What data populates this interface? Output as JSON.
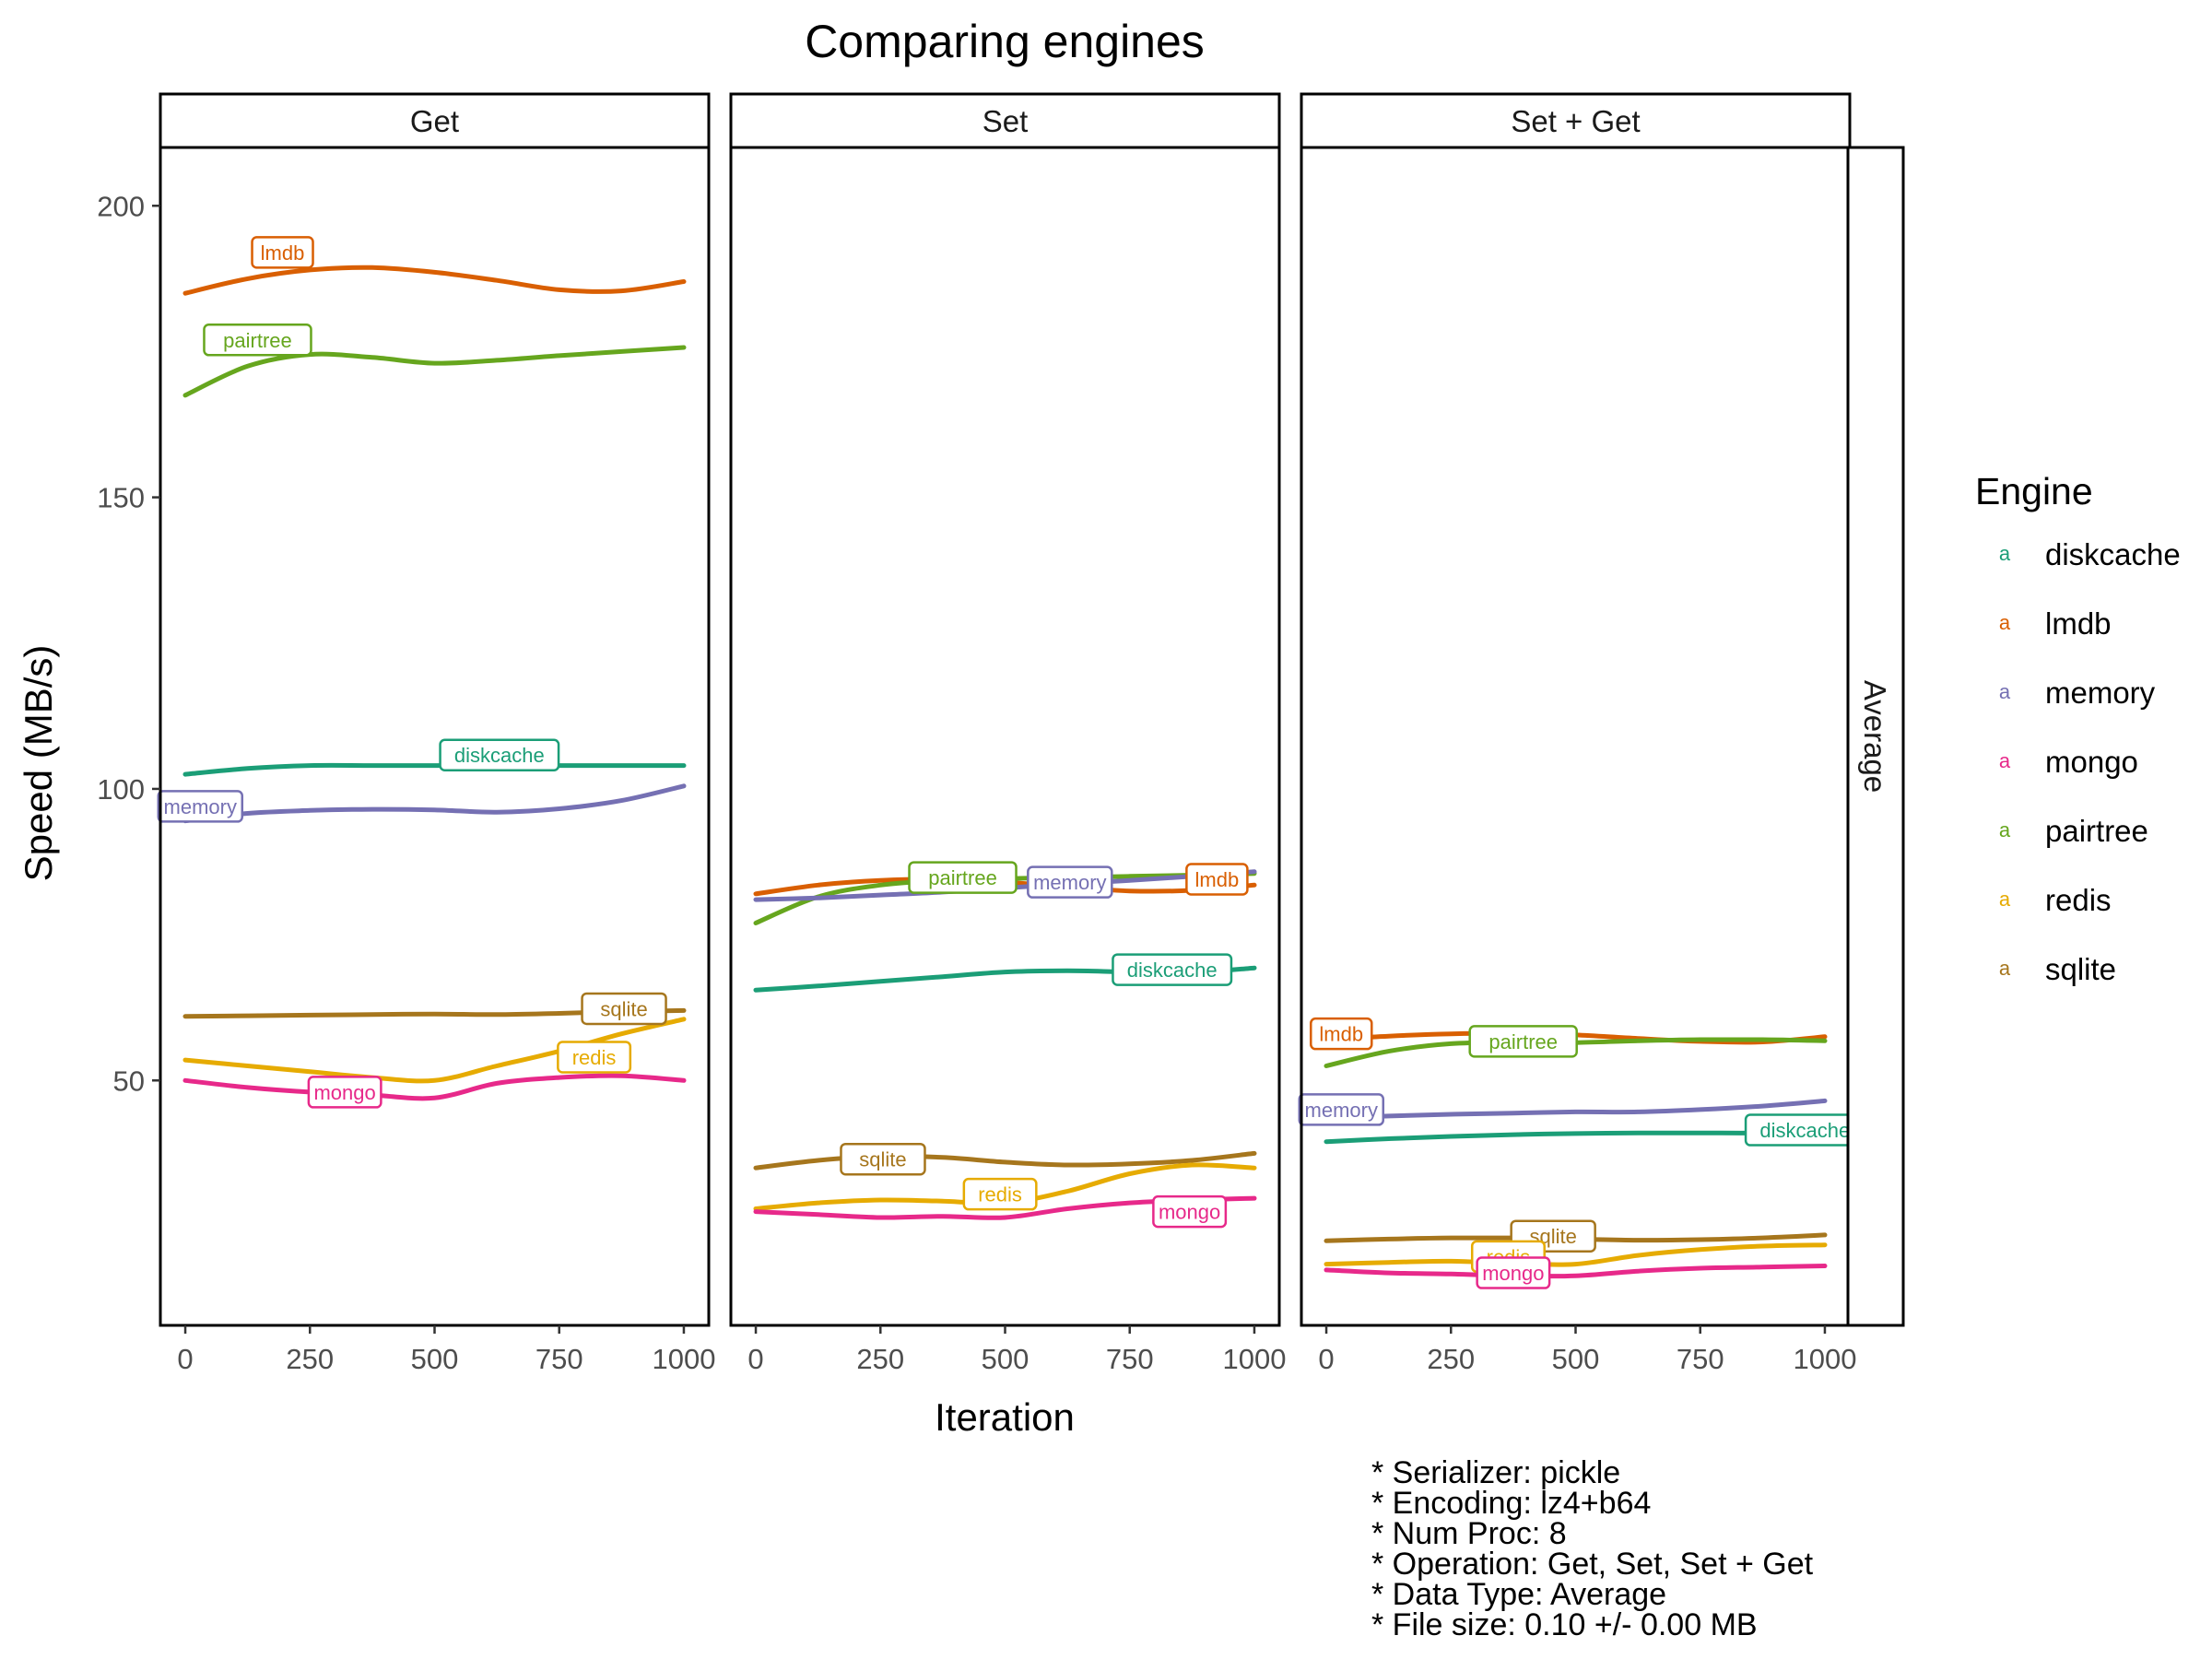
{
  "chart_data": {
    "type": "line",
    "title": "Comparing engines",
    "xlabel": "Iteration",
    "ylabel": "Speed (MB/s)",
    "xlim": [
      -50,
      1050
    ],
    "ylim": [
      8,
      210
    ],
    "x_ticks": [
      0,
      250,
      500,
      750,
      1000
    ],
    "y_ticks": [
      50,
      100,
      150,
      200
    ],
    "grid": false,
    "row_strip": "Average",
    "legend": {
      "title": "Engine",
      "placement": "right",
      "key_glyph": "a",
      "entries": [
        "diskcache",
        "lmdb",
        "memory",
        "mongo",
        "pairtree",
        "redis",
        "sqlite"
      ]
    },
    "colors": {
      "diskcache": "#1b9e77",
      "lmdb": "#d95f02",
      "memory": "#7570b3",
      "mongo": "#e7298a",
      "pairtree": "#66a61e",
      "redis": "#e6ab02",
      "sqlite": "#a6761d"
    },
    "panels": [
      {
        "strip": "Get",
        "series": [
          {
            "name": "lmdb",
            "x": [
              0,
              125,
              250,
              375,
              500,
              625,
              750,
              875,
              1000
            ],
            "y": [
              185,
              187.5,
              189,
              189.4,
              188.6,
              187.2,
              185.6,
              185.4,
              187
            ],
            "label_x": 195,
            "label_y": 192
          },
          {
            "name": "pairtree",
            "x": [
              0,
              125,
              250,
              375,
              500,
              625,
              750,
              875,
              1000
            ],
            "y": [
              167.5,
              172.5,
              174.5,
              174,
              173,
              173.5,
              174.3,
              175,
              175.7
            ],
            "label_x": 145,
            "label_y": 177
          },
          {
            "name": "diskcache",
            "x": [
              0,
              125,
              250,
              375,
              500,
              625,
              750,
              875,
              1000
            ],
            "y": [
              102.5,
              103.5,
              104,
              104,
              104,
              104,
              104,
              104,
              104
            ],
            "label_x": 630,
            "label_y": 105.8
          },
          {
            "name": "memory",
            "x": [
              0,
              125,
              250,
              375,
              500,
              625,
              750,
              875,
              1000
            ],
            "y": [
              94.5,
              95.8,
              96.3,
              96.5,
              96.4,
              96,
              96.6,
              98,
              100.5
            ],
            "label_x": 30,
            "label_y": 97
          },
          {
            "name": "sqlite",
            "x": [
              0,
              125,
              250,
              375,
              500,
              625,
              750,
              875,
              1000
            ],
            "y": [
              61,
              61.1,
              61.2,
              61.3,
              61.4,
              61.3,
              61.5,
              61.8,
              62
            ],
            "label_x": 880,
            "label_y": 62.3
          },
          {
            "name": "redis",
            "x": [
              0,
              125,
              250,
              375,
              500,
              625,
              750,
              875,
              1000
            ],
            "y": [
              53.5,
              52.5,
              51.5,
              50.5,
              50,
              52.5,
              55,
              58,
              60.5
            ],
            "label_x": 820,
            "label_y": 54
          },
          {
            "name": "mongo",
            "x": [
              0,
              125,
              250,
              375,
              500,
              625,
              750,
              875,
              1000
            ],
            "y": [
              50,
              48.8,
              48,
              47.5,
              47,
              49.5,
              50.5,
              50.8,
              50
            ],
            "label_x": 320,
            "label_y": 48
          }
        ]
      },
      {
        "strip": "Set",
        "series": [
          {
            "name": "lmdb",
            "x": [
              0,
              125,
              250,
              375,
              500,
              625,
              750,
              875,
              1000
            ],
            "y": [
              82,
              83.5,
              84.3,
              84.5,
              84,
              83.2,
              82.5,
              82.6,
              83.5
            ],
            "label_x": 925,
            "label_y": 84.5
          },
          {
            "name": "pairtree",
            "x": [
              0,
              125,
              250,
              375,
              500,
              625,
              750,
              875,
              1000
            ],
            "y": [
              77,
              81.5,
              83.5,
              84.3,
              84.6,
              84.8,
              85,
              85.2,
              85.5
            ],
            "label_x": 415,
            "label_y": 84.8
          },
          {
            "name": "memory",
            "x": [
              0,
              125,
              250,
              375,
              500,
              625,
              750,
              875,
              1000
            ],
            "y": [
              81,
              81.3,
              81.8,
              82.3,
              83,
              83.7,
              84.3,
              85,
              85.8
            ],
            "label_x": 630,
            "label_y": 84
          },
          {
            "name": "diskcache",
            "x": [
              0,
              125,
              250,
              375,
              500,
              625,
              750,
              875,
              1000
            ],
            "y": [
              65.5,
              66.2,
              67,
              67.8,
              68.6,
              68.8,
              68.6,
              68.5,
              69.3
            ],
            "label_x": 835,
            "label_y": 69
          },
          {
            "name": "sqlite",
            "x": [
              0,
              125,
              250,
              375,
              500,
              625,
              750,
              875,
              1000
            ],
            "y": [
              35,
              36.3,
              37,
              36.8,
              36,
              35.5,
              35.7,
              36.3,
              37.5
            ],
            "label_x": 255,
            "label_y": 36.5
          },
          {
            "name": "redis",
            "x": [
              0,
              125,
              250,
              375,
              500,
              625,
              750,
              875,
              1000
            ],
            "y": [
              28,
              29,
              29.5,
              29.3,
              29,
              31,
              34,
              35.5,
              35
            ],
            "label_x": 490,
            "label_y": 30.5
          },
          {
            "name": "mongo",
            "x": [
              0,
              125,
              250,
              375,
              500,
              625,
              750,
              875,
              1000
            ],
            "y": [
              27.5,
              27,
              26.5,
              26.7,
              26.5,
              28,
              29,
              29.5,
              29.8
            ],
            "label_x": 870,
            "label_y": 27.5
          }
        ]
      },
      {
        "strip": "Set + Get",
        "series": [
          {
            "name": "lmdb",
            "x": [
              0,
              125,
              250,
              375,
              500,
              625,
              750,
              875,
              1000
            ],
            "y": [
              57,
              57.6,
              58,
              58.1,
              57.8,
              57.2,
              56.7,
              56.6,
              57.5
            ],
            "label_x": 30,
            "label_y": 58
          },
          {
            "name": "pairtree",
            "x": [
              0,
              125,
              250,
              375,
              500,
              625,
              750,
              875,
              1000
            ],
            "y": [
              52.5,
              55,
              56.3,
              56.5,
              56.5,
              56.8,
              57,
              57,
              56.8
            ],
            "label_x": 395,
            "label_y": 56.7
          },
          {
            "name": "memory",
            "x": [
              0,
              125,
              250,
              375,
              500,
              625,
              750,
              875,
              1000
            ],
            "y": [
              43.5,
              43.9,
              44.2,
              44.4,
              44.6,
              44.6,
              45,
              45.6,
              46.5
            ],
            "label_x": 30,
            "label_y": 45
          },
          {
            "name": "diskcache",
            "x": [
              0,
              125,
              250,
              375,
              500,
              625,
              750,
              875,
              1000
            ],
            "y": [
              39.5,
              40,
              40.4,
              40.7,
              40.9,
              41,
              41,
              41,
              41.3
            ],
            "label_x": 960,
            "label_y": 41.5
          },
          {
            "name": "sqlite",
            "x": [
              0,
              125,
              250,
              375,
              500,
              625,
              750,
              875,
              1000
            ],
            "y": [
              22.5,
              22.8,
              23,
              23,
              22.8,
              22.6,
              22.7,
              23,
              23.5
            ],
            "label_x": 455,
            "label_y": 23.3
          },
          {
            "name": "redis",
            "x": [
              0,
              125,
              250,
              375,
              500,
              625,
              750,
              875,
              1000
            ],
            "y": [
              18.5,
              18.8,
              19,
              18.6,
              18.5,
              20,
              21,
              21.6,
              21.8
            ],
            "label_x": 365,
            "label_y": 19.8
          },
          {
            "name": "mongo",
            "x": [
              0,
              125,
              250,
              375,
              500,
              625,
              750,
              875,
              1000
            ],
            "y": [
              17.5,
              17,
              16.8,
              16.5,
              16.5,
              17.3,
              17.8,
              18,
              18.2
            ],
            "label_x": 375,
            "label_y": 17
          }
        ]
      }
    ]
  },
  "caption": [
    "* Serializer: pickle",
    "* Encoding: lz4+b64",
    "* Num Proc: 8",
    "* Operation: Get, Set, Set + Get",
    "* Data Type: Average",
    "* File size: 0.10 +/- 0.00 MB"
  ]
}
